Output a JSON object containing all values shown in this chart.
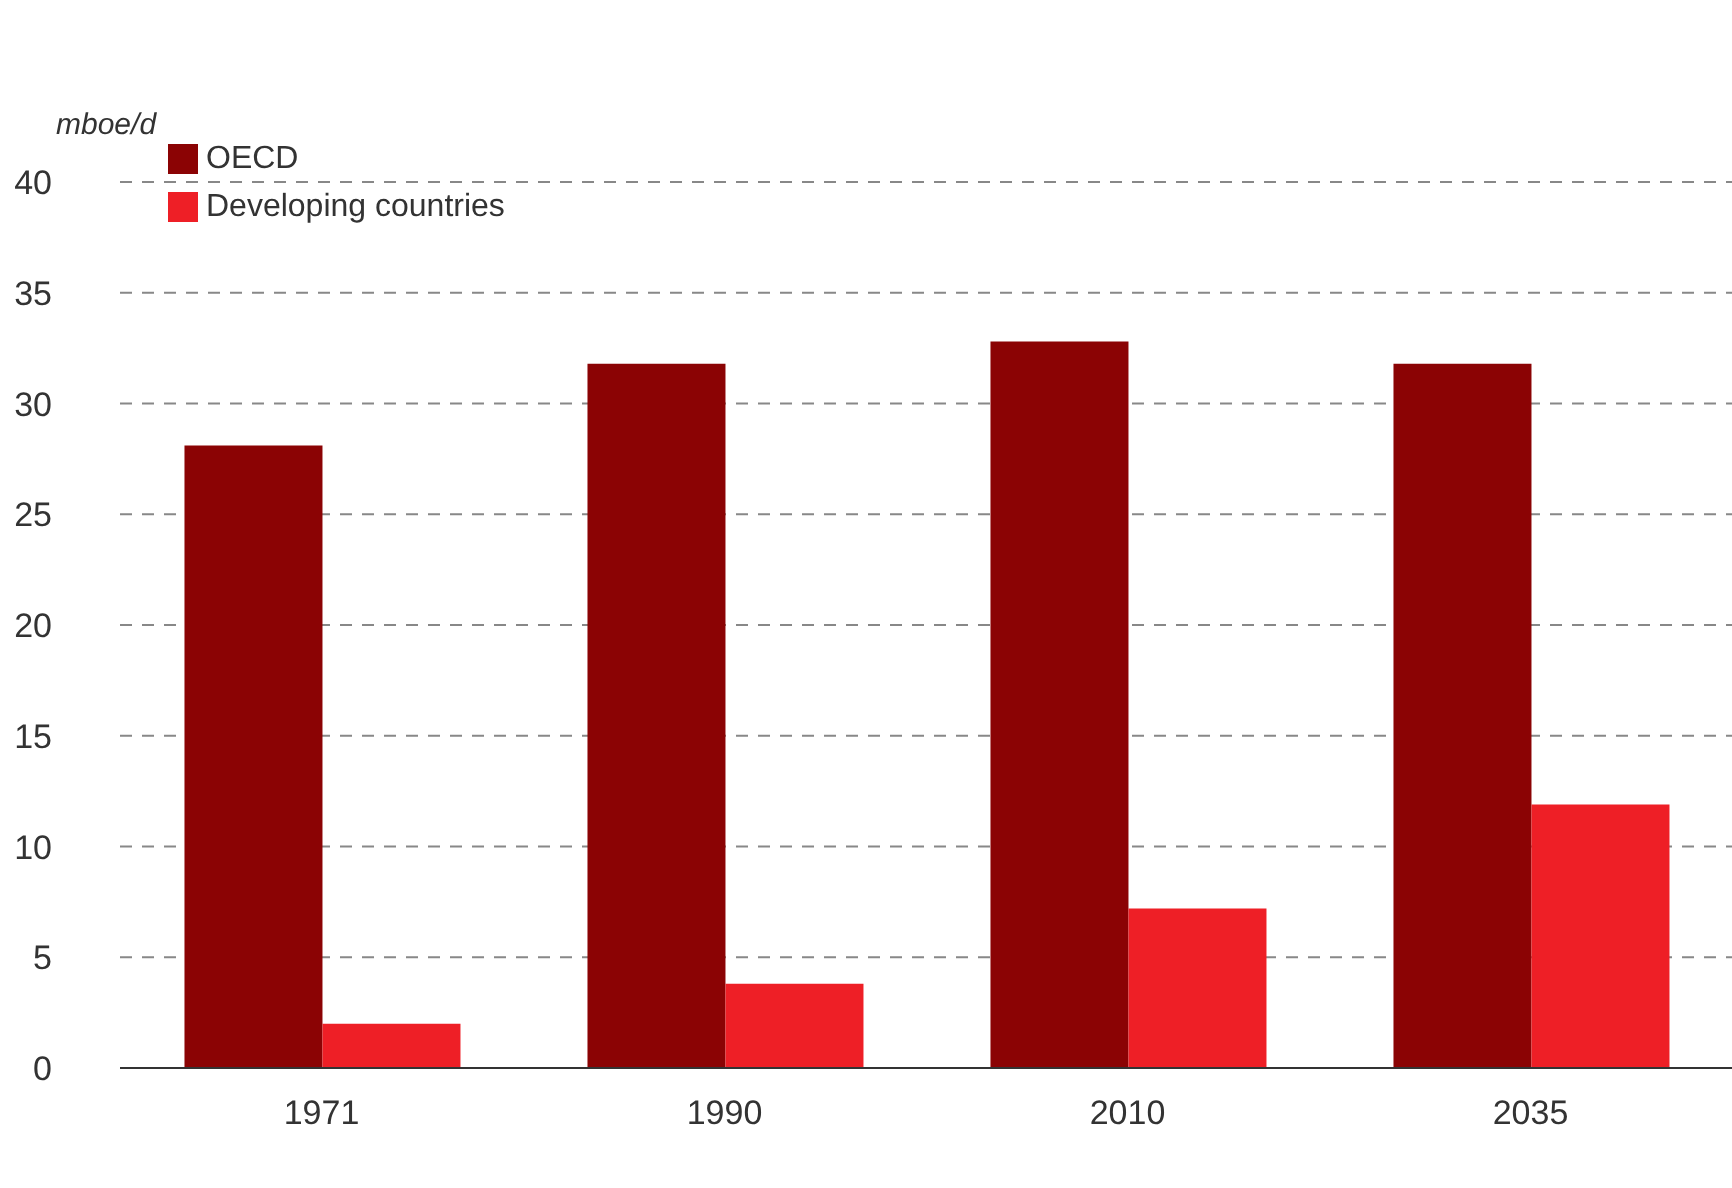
{
  "chart_data": {
    "type": "bar",
    "ylabel": "mboe/d",
    "categories": [
      "1971",
      "1990",
      "2010",
      "2035"
    ],
    "series": [
      {
        "name": "OECD",
        "color": "#8b0304",
        "values": [
          28.1,
          31.8,
          32.8,
          31.8
        ]
      },
      {
        "name": "Developing countries",
        "color": "#ee1f26",
        "values": [
          2.0,
          3.8,
          7.2,
          11.9
        ]
      }
    ],
    "ylim": [
      0,
      40
    ],
    "yticks": [
      0,
      5,
      10,
      15,
      20,
      25,
      30,
      35,
      40
    ],
    "grid": "y",
    "legend": "top left"
  }
}
